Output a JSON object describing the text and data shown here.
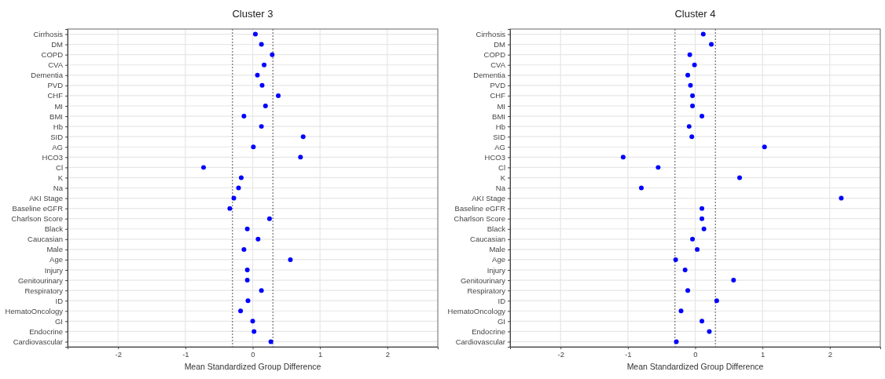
{
  "chart_data": [
    {
      "type": "scatter",
      "title": "Cluster 3",
      "xlabel": "Mean Standardized Group Difference",
      "orientation": "horizontal",
      "categories": [
        "Cirrhosis",
        "DM",
        "COPD",
        "CVA",
        "Dementia",
        "PVD",
        "CHF",
        "MI",
        "BMI",
        "Hb",
        "SID",
        "AG",
        "HCO3",
        "Cl",
        "K",
        "Na",
        "AKI Stage",
        "Baseline eGFR",
        "Charlson Score",
        "Black",
        "Caucasian",
        "Male",
        "Age",
        "Injury",
        "Genitourinary",
        "Respiratory",
        "ID",
        "HematoOncology",
        "GI",
        "Endocrine",
        "Cardiovascular"
      ],
      "series": [
        {
          "color": "#0000ff",
          "values": [
            0.04,
            0.13,
            0.29,
            0.17,
            0.07,
            0.14,
            0.38,
            0.19,
            -0.13,
            0.13,
            0.75,
            0.01,
            0.71,
            -0.73,
            -0.17,
            -0.21,
            -0.28,
            -0.34,
            0.25,
            -0.08,
            0.08,
            -0.13,
            0.56,
            -0.08,
            -0.08,
            0.13,
            -0.07,
            -0.18,
            0.0,
            0.02,
            0.27
          ]
        }
      ],
      "xlim": [
        -2.75,
        2.75
      ],
      "xticks": [
        -2,
        -1,
        0,
        1,
        2
      ],
      "grid": true,
      "marker": "circle",
      "ref_lines": [
        {
          "axis": "x",
          "value": -0.3,
          "color": "#555555",
          "line_style": "dotted"
        },
        {
          "axis": "x",
          "value": 0.3,
          "color": "#555555",
          "line_style": "dotted"
        }
      ]
    },
    {
      "type": "scatter",
      "title": "Cluster 4",
      "xlabel": "Mean Standardized Group Difference",
      "orientation": "horizontal",
      "categories": [
        "Cirrhosis",
        "DM",
        "COPD",
        "CVA",
        "Dementia",
        "PVD",
        "CHF",
        "MI",
        "BMI",
        "Hb",
        "SID",
        "AG",
        "HCO3",
        "Cl",
        "K",
        "Na",
        "AKI Stage",
        "Baseline eGFR",
        "Charlson Score",
        "Black",
        "Caucasian",
        "Male",
        "Age",
        "Injury",
        "Genitourinary",
        "Respiratory",
        "ID",
        "HematoOncology",
        "GI",
        "Endocrine",
        "Cardiovascular"
      ],
      "series": [
        {
          "color": "#0000ff",
          "values": [
            0.12,
            0.24,
            -0.08,
            -0.01,
            -0.11,
            -0.07,
            -0.04,
            -0.04,
            0.1,
            -0.09,
            -0.05,
            1.03,
            -1.07,
            -0.55,
            0.66,
            -0.8,
            2.17,
            0.1,
            0.1,
            0.13,
            -0.04,
            0.03,
            -0.29,
            -0.15,
            0.57,
            -0.11,
            0.32,
            -0.21,
            0.1,
            0.21,
            -0.28
          ]
        }
      ],
      "xlim": [
        -2.75,
        2.75
      ],
      "xticks": [
        -2,
        -1,
        0,
        1,
        2
      ],
      "grid": true,
      "marker": "circle",
      "ref_lines": [
        {
          "axis": "x",
          "value": -0.3,
          "color": "#555555",
          "line_style": "dotted"
        },
        {
          "axis": "x",
          "value": 0.3,
          "color": "#555555",
          "line_style": "dotted"
        }
      ]
    }
  ]
}
